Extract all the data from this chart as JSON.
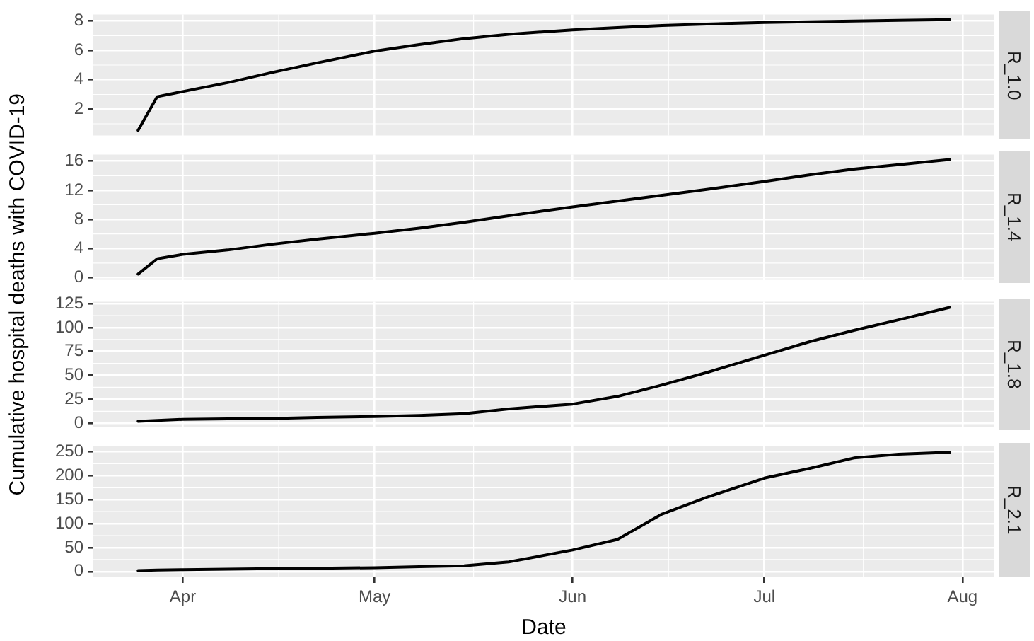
{
  "chart_data": [
    {
      "type": "line",
      "ylabel": "Cumulative hospital deaths with COVID-19",
      "tick_labels": "y",
      "grid": true,
      "x": [
        "--03-25",
        "--03-28",
        "--04-01",
        "--04-08",
        "--04-15",
        "--04-22",
        "--05-01",
        "--05-08",
        "--05-15",
        "--05-22",
        "--06-01",
        "--06-08",
        "--06-15",
        "--06-22",
        "--07-01",
        "--07-08",
        "--07-15",
        "--07-22",
        "--07-30"
      ],
      "series": [
        {
          "name": "R_1.0",
          "color": "#000000",
          "values": [
            0.55,
            2.85,
            3.2,
            3.8,
            4.5,
            5.15,
            5.95,
            6.4,
            6.8,
            7.1,
            7.4,
            7.55,
            7.7,
            7.8,
            7.9,
            7.95,
            8.0,
            8.05,
            8.1
          ]
        }
      ],
      "xlim": [
        "--03-18",
        "--08-06"
      ],
      "xticks": [
        {
          "value": "--04-01",
          "label": "Apr"
        },
        {
          "value": "--05-01",
          "label": "May"
        },
        {
          "value": "--06-01",
          "label": "Jun"
        },
        {
          "value": "--07-01",
          "label": "Jul"
        },
        {
          "value": "--08-01",
          "label": "Aug"
        }
      ],
      "ylim": [
        0.2,
        8.45
      ],
      "yticks": [
        2,
        4,
        6,
        8
      ]
    },
    {
      "type": "line",
      "tick_labels": "y",
      "grid": true,
      "x": [
        "--03-25",
        "--03-28",
        "--04-01",
        "--04-08",
        "--04-15",
        "--04-22",
        "--05-01",
        "--05-08",
        "--05-15",
        "--05-22",
        "--06-01",
        "--06-08",
        "--06-15",
        "--06-22",
        "--07-01",
        "--07-08",
        "--07-15",
        "--07-22",
        "--07-30"
      ],
      "series": [
        {
          "name": "R_1.4",
          "color": "#000000",
          "values": [
            0.5,
            2.6,
            3.2,
            3.8,
            4.6,
            5.3,
            6.1,
            6.8,
            7.6,
            8.5,
            9.7,
            10.5,
            11.3,
            12.1,
            13.2,
            14.1,
            14.9,
            15.5,
            16.2
          ]
        }
      ],
      "xlim": [
        "--03-18",
        "--08-06"
      ],
      "xticks": [
        {
          "value": "--04-01",
          "label": "Apr"
        },
        {
          "value": "--05-01",
          "label": "May"
        },
        {
          "value": "--06-01",
          "label": "Jun"
        },
        {
          "value": "--07-01",
          "label": "Jul"
        },
        {
          "value": "--08-01",
          "label": "Aug"
        }
      ],
      "ylim": [
        -0.3,
        16.9
      ],
      "yticks": [
        0,
        4,
        8,
        12,
        16
      ]
    },
    {
      "type": "line",
      "tick_labels": "y",
      "grid": true,
      "x": [
        "--03-25",
        "--03-28",
        "--04-01",
        "--04-08",
        "--04-15",
        "--04-22",
        "--05-01",
        "--05-08",
        "--05-15",
        "--05-22",
        "--06-01",
        "--06-08",
        "--06-15",
        "--06-22",
        "--07-01",
        "--07-08",
        "--07-15",
        "--07-22",
        "--07-30"
      ],
      "series": [
        {
          "name": "R_1.8",
          "color": "#000000",
          "values": [
            2,
            3,
            4,
            4.5,
            5,
            6,
            7,
            8,
            10,
            15,
            20,
            28,
            40,
            53,
            71,
            85,
            97,
            108,
            121
          ]
        }
      ],
      "xlim": [
        "--03-18",
        "--08-06"
      ],
      "xticks": [
        {
          "value": "--04-01",
          "label": "Apr"
        },
        {
          "value": "--05-01",
          "label": "May"
        },
        {
          "value": "--06-01",
          "label": "Jun"
        },
        {
          "value": "--07-01",
          "label": "Jul"
        },
        {
          "value": "--08-01",
          "label": "Aug"
        }
      ],
      "ylim": [
        -4,
        127
      ],
      "yticks": [
        0,
        25,
        50,
        75,
        100,
        125
      ]
    },
    {
      "type": "line",
      "xlabel": "Date",
      "grid": true,
      "x": [
        "--03-25",
        "--03-28",
        "--04-01",
        "--04-08",
        "--04-15",
        "--04-22",
        "--05-01",
        "--05-08",
        "--05-15",
        "--05-22",
        "--06-01",
        "--06-08",
        "--06-15",
        "--06-22",
        "--07-01",
        "--07-08",
        "--07-15",
        "--07-22",
        "--07-30"
      ],
      "series": [
        {
          "name": "R_2.1",
          "color": "#000000",
          "values": [
            2,
            3,
            4,
            5,
            6,
            7,
            8,
            10,
            12,
            20,
            45,
            67,
            120,
            155,
            195,
            215,
            237,
            245,
            249
          ]
        }
      ],
      "xlim": [
        "--03-18",
        "--08-06"
      ],
      "xticks": [
        {
          "value": "--04-01",
          "label": "Apr"
        },
        {
          "value": "--05-01",
          "label": "May"
        },
        {
          "value": "--06-01",
          "label": "Jun"
        },
        {
          "value": "--07-01",
          "label": "Jul"
        },
        {
          "value": "--08-01",
          "label": "Aug"
        }
      ],
      "ylim": [
        -12,
        262
      ],
      "yticks": [
        0,
        50,
        100,
        150,
        200,
        250
      ]
    }
  ]
}
